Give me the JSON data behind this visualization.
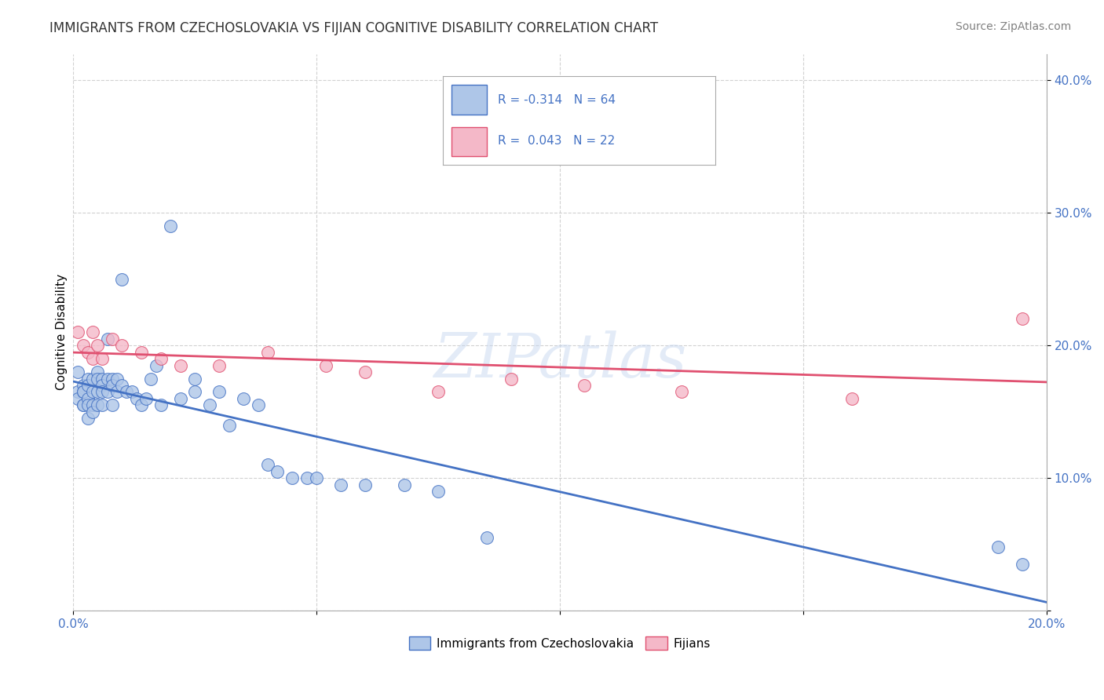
{
  "title": "IMMIGRANTS FROM CZECHOSLOVAKIA VS FIJIAN COGNITIVE DISABILITY CORRELATION CHART",
  "source": "Source: ZipAtlas.com",
  "ylabel_label": "Cognitive Disability",
  "xlim": [
    0.0,
    0.2
  ],
  "ylim": [
    0.0,
    0.42
  ],
  "xticks": [
    0.0,
    0.05,
    0.1,
    0.15,
    0.2
  ],
  "yticks": [
    0.0,
    0.1,
    0.2,
    0.3,
    0.4
  ],
  "xtick_labels": [
    "0.0%",
    "",
    "",
    "",
    "20.0%"
  ],
  "ytick_labels_right": [
    "",
    "10.0%",
    "20.0%",
    "30.0%",
    "40.0%"
  ],
  "blue_R": "-0.314",
  "blue_N": "64",
  "pink_R": "0.043",
  "pink_N": "22",
  "blue_color": "#aec6e8",
  "pink_color": "#f4b8c8",
  "blue_line_color": "#4472c4",
  "pink_line_color": "#e05070",
  "watermark": "ZIPatlas",
  "legend_label_blue": "Immigrants from Czechoslovakia",
  "legend_label_pink": "Fijians",
  "blue_scatter_x": [
    0.001,
    0.001,
    0.001,
    0.002,
    0.002,
    0.002,
    0.002,
    0.002,
    0.003,
    0.003,
    0.003,
    0.003,
    0.003,
    0.004,
    0.004,
    0.004,
    0.004,
    0.005,
    0.005,
    0.005,
    0.005,
    0.006,
    0.006,
    0.006,
    0.006,
    0.007,
    0.007,
    0.007,
    0.008,
    0.008,
    0.008,
    0.009,
    0.009,
    0.01,
    0.01,
    0.011,
    0.012,
    0.013,
    0.014,
    0.015,
    0.016,
    0.017,
    0.018,
    0.02,
    0.022,
    0.025,
    0.025,
    0.028,
    0.03,
    0.032,
    0.035,
    0.038,
    0.04,
    0.042,
    0.045,
    0.048,
    0.05,
    0.055,
    0.06,
    0.068,
    0.075,
    0.085,
    0.19,
    0.195
  ],
  "blue_scatter_y": [
    0.18,
    0.165,
    0.16,
    0.17,
    0.165,
    0.165,
    0.155,
    0.155,
    0.175,
    0.17,
    0.16,
    0.155,
    0.145,
    0.175,
    0.165,
    0.155,
    0.15,
    0.18,
    0.175,
    0.165,
    0.155,
    0.175,
    0.17,
    0.165,
    0.155,
    0.205,
    0.175,
    0.165,
    0.175,
    0.17,
    0.155,
    0.175,
    0.165,
    0.25,
    0.17,
    0.165,
    0.165,
    0.16,
    0.155,
    0.16,
    0.175,
    0.185,
    0.155,
    0.29,
    0.16,
    0.165,
    0.175,
    0.155,
    0.165,
    0.14,
    0.16,
    0.155,
    0.11,
    0.105,
    0.1,
    0.1,
    0.1,
    0.095,
    0.095,
    0.095,
    0.09,
    0.055,
    0.048,
    0.035
  ],
  "pink_scatter_x": [
    0.001,
    0.002,
    0.003,
    0.004,
    0.004,
    0.005,
    0.006,
    0.008,
    0.01,
    0.014,
    0.018,
    0.022,
    0.03,
    0.04,
    0.052,
    0.06,
    0.075,
    0.09,
    0.105,
    0.125,
    0.16,
    0.195
  ],
  "pink_scatter_y": [
    0.21,
    0.2,
    0.195,
    0.21,
    0.19,
    0.2,
    0.19,
    0.205,
    0.2,
    0.195,
    0.19,
    0.185,
    0.185,
    0.195,
    0.185,
    0.18,
    0.165,
    0.175,
    0.17,
    0.165,
    0.16,
    0.22
  ],
  "grid_color": "#cccccc",
  "background_color": "#ffffff",
  "title_fontsize": 12,
  "axis_fontsize": 11,
  "tick_fontsize": 11,
  "tick_color": "#4472c4",
  "source_fontsize": 10
}
